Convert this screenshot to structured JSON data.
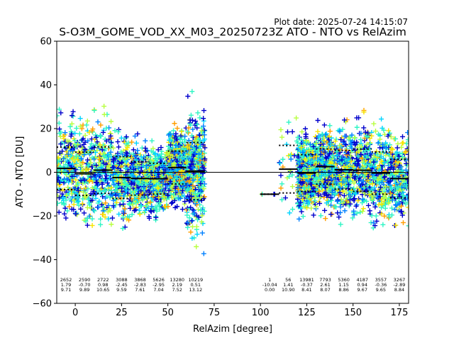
{
  "chart_data": {
    "type": "scatter",
    "title": "S-O3M_GOME_VOD_XX_M03_20250723Z ATO - NTO vs RelAzim",
    "plot_date": "Plot date: 2025-07-24 14:15:07",
    "xlabel": "RelAzim [degree]",
    "ylabel": "ATO - NTO [DU]",
    "xlim": [
      -10,
      180
    ],
    "ylim": [
      -60,
      60
    ],
    "xticks": [
      0,
      25,
      50,
      75,
      100,
      125,
      150,
      175
    ],
    "yticks": [
      -60,
      -40,
      -20,
      0,
      20,
      40,
      60
    ],
    "marker": "+",
    "colormap": [
      "#0000cc",
      "#0080ff",
      "#00d4ff",
      "#2ef5c4",
      "#b8ff40",
      "#f7e400",
      "#ff9e00"
    ],
    "zero_line": 0,
    "bins": [
      {
        "x0": -10,
        "x1": 0,
        "n": "2652",
        "mean": "1.79",
        "std": "9.71"
      },
      {
        "x0": 0,
        "x1": 10,
        "n": "2590",
        "mean": "-0.70",
        "std": "9.89"
      },
      {
        "x0": 10,
        "x1": 20,
        "n": "2722",
        "mean": "0.98",
        "std": "10.65"
      },
      {
        "x0": 20,
        "x1": 30,
        "n": "3088",
        "mean": "-2.45",
        "std": "9.59"
      },
      {
        "x0": 30,
        "x1": 40,
        "n": "3868",
        "mean": "-2.83",
        "std": "7.61"
      },
      {
        "x0": 40,
        "x1": 50,
        "n": "5626",
        "mean": "-2.95",
        "std": "7.04"
      },
      {
        "x0": 50,
        "x1": 60,
        "n": "13280",
        "mean": "2.19",
        "std": "7.52"
      },
      {
        "x0": 60,
        "x1": 70,
        "n": "10219",
        "mean": "0.51",
        "std": "13.12"
      },
      {
        "x0": 100,
        "x1": 110,
        "n": "1",
        "mean": "-10.04",
        "std": "0.00"
      },
      {
        "x0": 110,
        "x1": 120,
        "n": "56",
        "mean": "1.41",
        "std": "10.90"
      },
      {
        "x0": 120,
        "x1": 130,
        "n": "13981",
        "mean": "-0.37",
        "std": "8.41"
      },
      {
        "x0": 130,
        "x1": 140,
        "n": "7793",
        "mean": "2.61",
        "std": "8.07"
      },
      {
        "x0": 140,
        "x1": 150,
        "n": "5360",
        "mean": "1.15",
        "std": "8.86"
      },
      {
        "x0": 150,
        "x1": 160,
        "n": "4187",
        "mean": "0.94",
        "std": "9.67"
      },
      {
        "x0": 160,
        "x1": 170,
        "n": "3557",
        "mean": "-0.36",
        "std": "9.65"
      },
      {
        "x0": 170,
        "x1": 180,
        "n": "3267",
        "mean": "-2.89",
        "std": "8.84"
      }
    ]
  }
}
